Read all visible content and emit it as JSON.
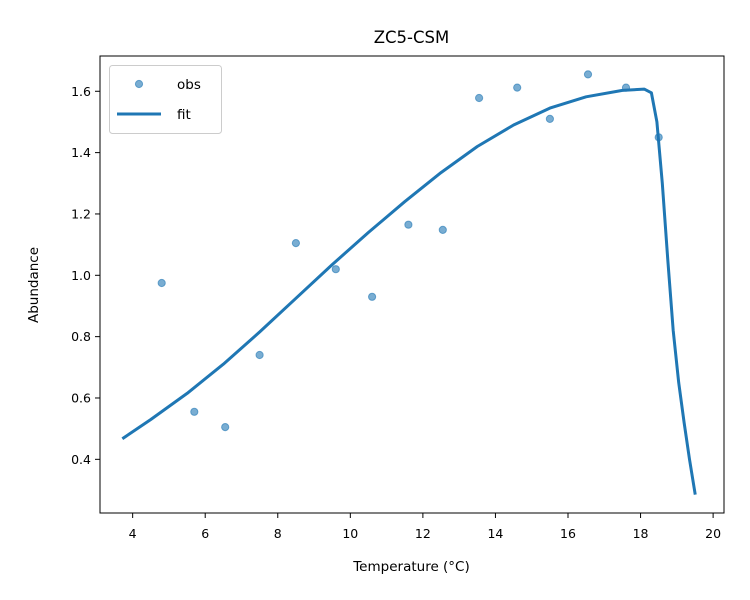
{
  "chart_data": {
    "type": "scatter",
    "title": "ZC5-CSM",
    "xlabel": "Temperature (°C)",
    "ylabel": "Abundance",
    "xlim": [
      3.1,
      20.3
    ],
    "ylim": [
      0.225,
      1.715
    ],
    "xticks": [
      4,
      6,
      8,
      10,
      12,
      14,
      16,
      18,
      20
    ],
    "yticks": [
      0.4,
      0.6,
      0.8,
      1.0,
      1.2,
      1.4,
      1.6
    ],
    "xtick_labels": [
      "4",
      "6",
      "8",
      "10",
      "12",
      "14",
      "16",
      "18",
      "20"
    ],
    "ytick_labels": [
      "0.4",
      "0.6",
      "0.8",
      "1.0",
      "1.2",
      "1.4",
      "1.6"
    ],
    "grid": false,
    "legend_position": "upper-left",
    "series": [
      {
        "name": "obs",
        "kind": "scatter",
        "color": "#1f77b4",
        "points": [
          {
            "x": 4.8,
            "y": 0.975
          },
          {
            "x": 5.7,
            "y": 0.555
          },
          {
            "x": 6.55,
            "y": 0.505
          },
          {
            "x": 7.5,
            "y": 0.74
          },
          {
            "x": 8.5,
            "y": 1.105
          },
          {
            "x": 9.6,
            "y": 1.02
          },
          {
            "x": 10.6,
            "y": 0.93
          },
          {
            "x": 11.6,
            "y": 1.165
          },
          {
            "x": 12.55,
            "y": 1.148
          },
          {
            "x": 13.55,
            "y": 1.578
          },
          {
            "x": 14.6,
            "y": 1.612
          },
          {
            "x": 15.5,
            "y": 1.51
          },
          {
            "x": 16.55,
            "y": 1.655
          },
          {
            "x": 17.6,
            "y": 1.612
          },
          {
            "x": 18.5,
            "y": 1.45
          }
        ]
      },
      {
        "name": "fit",
        "kind": "line",
        "color": "#1f77b4",
        "points": [
          {
            "x": 3.75,
            "y": 0.47
          },
          {
            "x": 4.5,
            "y": 0.53
          },
          {
            "x": 5.5,
            "y": 0.615
          },
          {
            "x": 6.5,
            "y": 0.71
          },
          {
            "x": 7.5,
            "y": 0.815
          },
          {
            "x": 8.5,
            "y": 0.925
          },
          {
            "x": 9.5,
            "y": 1.035
          },
          {
            "x": 10.5,
            "y": 1.14
          },
          {
            "x": 11.5,
            "y": 1.24
          },
          {
            "x": 12.5,
            "y": 1.335
          },
          {
            "x": 13.5,
            "y": 1.42
          },
          {
            "x": 14.5,
            "y": 1.49
          },
          {
            "x": 15.5,
            "y": 1.545
          },
          {
            "x": 16.5,
            "y": 1.582
          },
          {
            "x": 17.5,
            "y": 1.603
          },
          {
            "x": 18.1,
            "y": 1.607
          },
          {
            "x": 18.3,
            "y": 1.595
          },
          {
            "x": 18.45,
            "y": 1.5
          },
          {
            "x": 18.6,
            "y": 1.3
          },
          {
            "x": 18.75,
            "y": 1.05
          },
          {
            "x": 18.9,
            "y": 0.82
          },
          {
            "x": 19.05,
            "y": 0.65
          },
          {
            "x": 19.2,
            "y": 0.52
          },
          {
            "x": 19.35,
            "y": 0.4
          },
          {
            "x": 19.5,
            "y": 0.29
          }
        ]
      }
    ]
  }
}
